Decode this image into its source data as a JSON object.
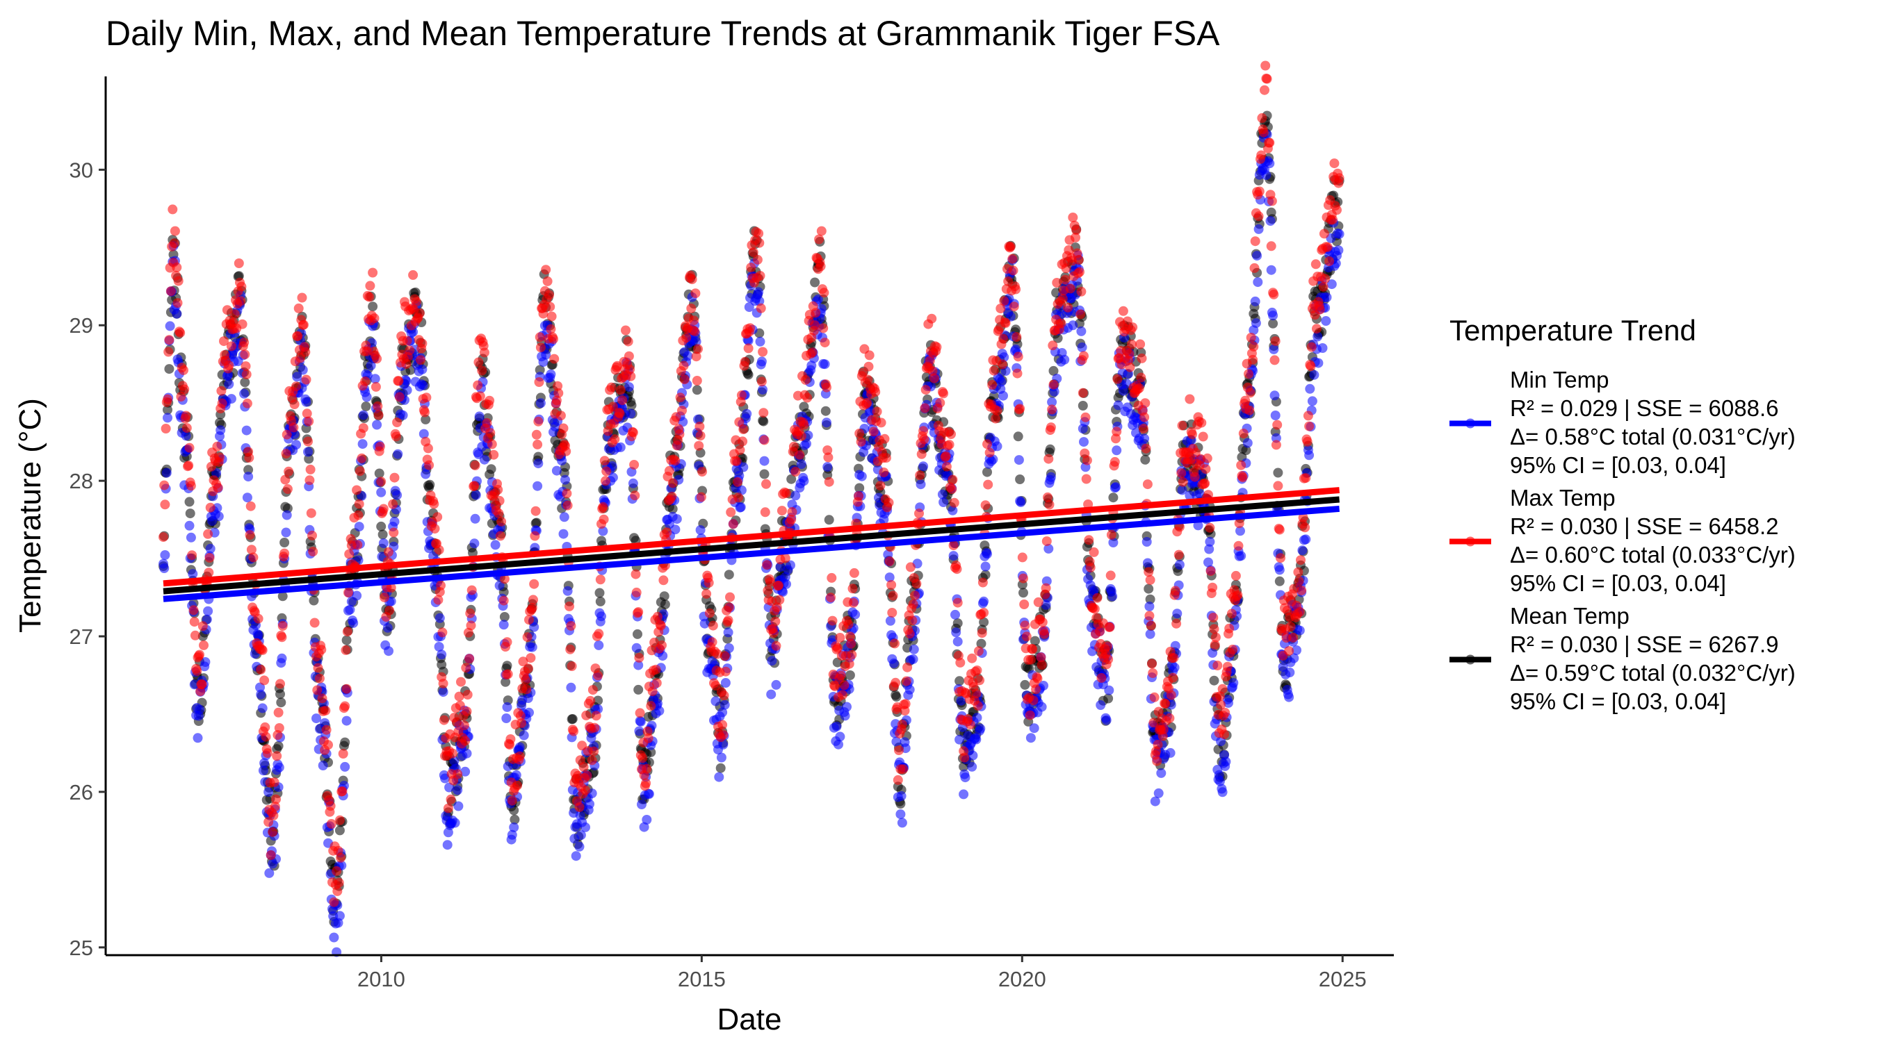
{
  "chart_data": {
    "type": "scatter",
    "title": "Daily Min, Max, and Mean Temperature Trends at Grammanik Tiger FSA",
    "xlabel": "Date",
    "ylabel": "Temperature (°C)",
    "xlim": [
      2005.7,
      2025.8
    ],
    "ylim": [
      24.95,
      30.6
    ],
    "x_ticks": [
      2010,
      2015,
      2020,
      2025
    ],
    "x_tick_labels": [
      "2010",
      "2015",
      "2020",
      "2025"
    ],
    "y_ticks": [
      25,
      26,
      27,
      28,
      29,
      30
    ],
    "y_tick_labels": [
      "25",
      "26",
      "27",
      "28",
      "29",
      "30"
    ],
    "grid": false,
    "legend": {
      "title": "Temperature Trend",
      "position": "right",
      "entries": [
        {
          "series": "Min Temp",
          "lines": [
            "Min Temp",
            "R² = 0.029 | SSE = 6088.6",
            "Δ= 0.58°C total (0.031°C/yr)",
            "95% CI = [0.03, 0.04]"
          ]
        },
        {
          "series": "Max Temp",
          "lines": [
            "Max Temp",
            "R² = 0.030 | SSE = 6458.2",
            "Δ= 0.60°C total (0.033°C/yr)",
            "95% CI = [0.03, 0.04]"
          ]
        },
        {
          "series": "Mean Temp",
          "lines": [
            "Mean Temp",
            "R² = 0.030 | SSE = 6267.9",
            "Δ= 0.59°C total (0.032°C/yr)",
            "95% CI = [0.03, 0.04]"
          ]
        }
      ]
    },
    "x_range": [
      2006.6,
      2024.95
    ],
    "daily_profile": {
      "x": [
        2006.6,
        2006.75,
        2006.95,
        2007.15,
        2007.4,
        2007.6,
        2007.8,
        2008.05,
        2008.3,
        2008.6,
        2008.75,
        2009.05,
        2009.3,
        2009.55,
        2009.85,
        2010.1,
        2010.35,
        2010.55,
        2010.85,
        2011.05,
        2011.3,
        2011.55,
        2011.85,
        2012.05,
        2012.3,
        2012.55,
        2012.85,
        2013.05,
        2013.3,
        2013.55,
        2013.85,
        2014.1,
        2014.3,
        2014.55,
        2014.85,
        2015.1,
        2015.3,
        2015.55,
        2015.85,
        2016.1,
        2016.3,
        2016.55,
        2016.85,
        2017.1,
        2017.3,
        2017.55,
        2017.85,
        2018.1,
        2018.3,
        2018.55,
        2018.85,
        2019.1,
        2019.3,
        2019.55,
        2019.85,
        2020.1,
        2020.3,
        2020.55,
        2020.85,
        2021.1,
        2021.3,
        2021.55,
        2021.85,
        2022.1,
        2022.3,
        2022.55,
        2022.85,
        2023.1,
        2023.3,
        2023.5,
        2023.8,
        2024.1,
        2024.3,
        2024.6,
        2024.95
      ],
      "y": [
        27.7,
        29.4,
        28.3,
        26.6,
        27.9,
        28.8,
        29.1,
        27.0,
        25.7,
        28.3,
        28.9,
        26.6,
        25.3,
        27.4,
        29.0,
        27.2,
        28.8,
        29.0,
        27.5,
        26.0,
        26.4,
        28.6,
        27.6,
        26.0,
        26.8,
        29.1,
        28.0,
        25.9,
        26.3,
        28.3,
        28.7,
        26.1,
        26.8,
        28.0,
        29.1,
        27.1,
        26.4,
        28.0,
        29.4,
        26.9,
        27.6,
        28.3,
        29.3,
        26.6,
        26.9,
        28.5,
        28.0,
        26.1,
        27.2,
        28.7,
        28.1,
        26.3,
        26.6,
        28.5,
        29.3,
        26.6,
        26.9,
        29.0,
        29.4,
        27.2,
        26.7,
        28.8,
        28.6,
        26.2,
        26.6,
        28.2,
        28.0,
        26.3,
        27.0,
        28.4,
        30.3,
        26.9,
        27.2,
        29.1,
        29.8
      ]
    },
    "series": [
      {
        "name": "Min Temp",
        "color": "#0000ff",
        "offset": -0.12,
        "trend": {
          "x": [
            2006.6,
            2024.95
          ],
          "y": [
            27.24,
            27.82
          ]
        }
      },
      {
        "name": "Max Temp",
        "color": "#ff0000",
        "offset": 0.12,
        "trend": {
          "x": [
            2006.6,
            2024.95
          ],
          "y": [
            27.34,
            27.94
          ]
        }
      },
      {
        "name": "Mean Temp",
        "color": "#000000",
        "offset": 0.0,
        "trend": {
          "x": [
            2006.6,
            2024.95
          ],
          "y": [
            27.29,
            27.88
          ]
        }
      }
    ]
  }
}
